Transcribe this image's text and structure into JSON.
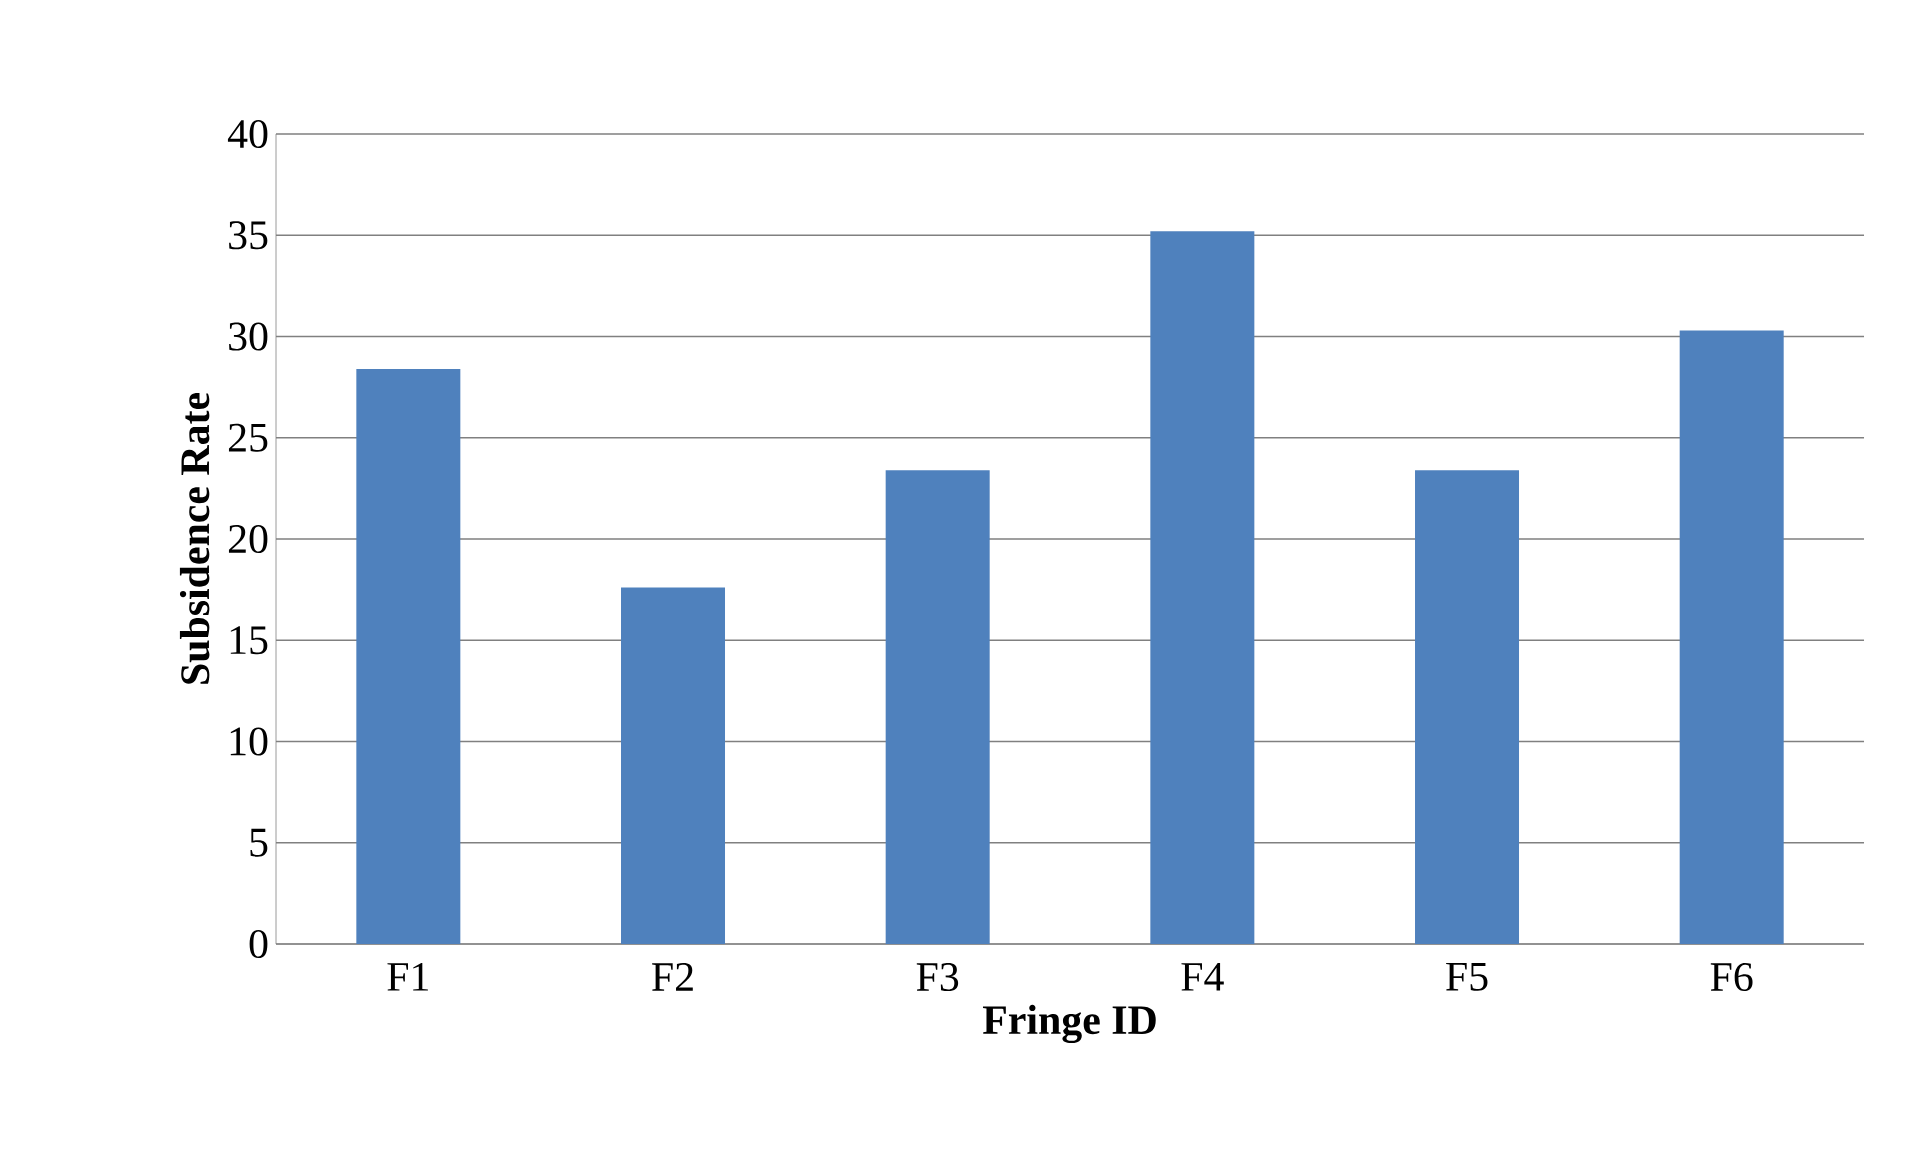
{
  "chart_data": {
    "type": "bar",
    "xlabel": "Fringe ID",
    "ylabel": "Subsidence Rate",
    "categories": [
      "F1",
      "F2",
      "F3",
      "F4",
      "F5",
      "F6"
    ],
    "values": [
      28.4,
      17.6,
      23.4,
      35.2,
      23.4,
      30.3
    ],
    "color": "#4f81bd",
    "ylim": [
      0,
      40
    ],
    "yticks": [
      0,
      5,
      10,
      15,
      20,
      25,
      30,
      35,
      40
    ],
    "grid": "y"
  }
}
